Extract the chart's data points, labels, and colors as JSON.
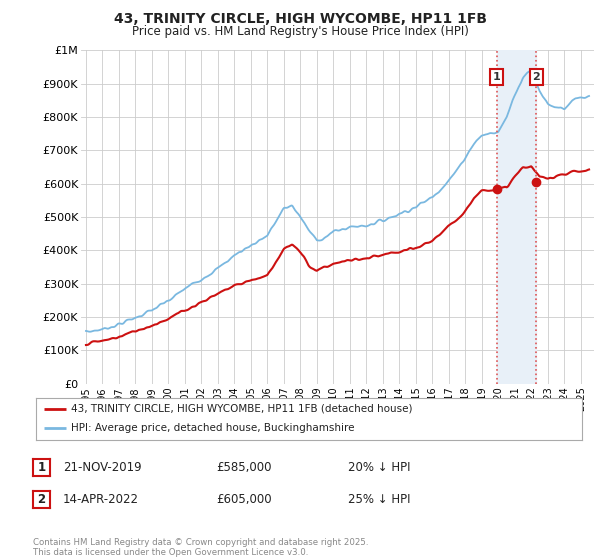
{
  "title": "43, TRINITY CIRCLE, HIGH WYCOMBE, HP11 1FB",
  "subtitle": "Price paid vs. HM Land Registry's House Price Index (HPI)",
  "ylabel_ticks": [
    "£0",
    "£100K",
    "£200K",
    "£300K",
    "£400K",
    "£500K",
    "£600K",
    "£700K",
    "£800K",
    "£900K",
    "£1M"
  ],
  "ylim": [
    0,
    1000000
  ],
  "ytick_values": [
    0,
    100000,
    200000,
    300000,
    400000,
    500000,
    600000,
    700000,
    800000,
    900000,
    1000000
  ],
  "hpi_color": "#7ab8e0",
  "price_color": "#cc1111",
  "vline_color": "#dd5555",
  "highlight_bg": "#e8f0f8",
  "legend_label_red": "43, TRINITY CIRCLE, HIGH WYCOMBE, HP11 1FB (detached house)",
  "legend_label_blue": "HPI: Average price, detached house, Buckinghamshire",
  "annotation1_label": "1",
  "annotation1_date": "21-NOV-2019",
  "annotation1_price": "£585,000",
  "annotation1_hpi": "20% ↓ HPI",
  "annotation2_label": "2",
  "annotation2_date": "14-APR-2022",
  "annotation2_price": "£605,000",
  "annotation2_hpi": "25% ↓ HPI",
  "footnote": "Contains HM Land Registry data © Crown copyright and database right 2025.\nThis data is licensed under the Open Government Licence v3.0.",
  "sale1_year": 2019.9,
  "sale2_year": 2022.3,
  "sale1_value": 585000,
  "sale2_value": 605000,
  "background_color": "#ffffff",
  "grid_color": "#cccccc",
  "hpi_keypoints_x": [
    1995,
    1996,
    1997,
    1998,
    1999,
    2000,
    2001,
    2002,
    2003,
    2004,
    2005,
    2006,
    2007,
    2007.5,
    2008,
    2008.5,
    2009,
    2009.5,
    2010,
    2011,
    2012,
    2013,
    2014,
    2015,
    2016,
    2017,
    2017.5,
    2018,
    2018.5,
    2019,
    2019.5,
    2020,
    2020.5,
    2021,
    2021.5,
    2022,
    2022.5,
    2023,
    2023.5,
    2024,
    2024.5,
    2025.5
  ],
  "hpi_keypoints_y": [
    155000,
    163000,
    178000,
    198000,
    220000,
    248000,
    285000,
    315000,
    345000,
    385000,
    415000,
    445000,
    525000,
    535000,
    500000,
    460000,
    430000,
    440000,
    455000,
    470000,
    475000,
    490000,
    510000,
    530000,
    560000,
    610000,
    640000,
    680000,
    720000,
    745000,
    750000,
    755000,
    800000,
    870000,
    920000,
    940000,
    880000,
    840000,
    830000,
    820000,
    850000,
    860000
  ],
  "price_keypoints_x": [
    1995,
    1996,
    1997,
    1998,
    1999,
    2000,
    2001,
    2002,
    2003,
    2004,
    2005,
    2006,
    2007,
    2007.5,
    2008,
    2008.5,
    2009,
    2009.5,
    2010,
    2011,
    2012,
    2013,
    2014,
    2015,
    2016,
    2017,
    2018,
    2018.5,
    2019,
    2019.5,
    2020,
    2020.5,
    2021,
    2021.5,
    2022,
    2022.5,
    2023,
    2023.5,
    2024,
    2024.5,
    2025.5
  ],
  "price_keypoints_y": [
    120000,
    128000,
    140000,
    158000,
    175000,
    195000,
    220000,
    245000,
    270000,
    295000,
    310000,
    325000,
    405000,
    415000,
    395000,
    355000,
    340000,
    350000,
    360000,
    370000,
    375000,
    385000,
    395000,
    405000,
    430000,
    470000,
    520000,
    555000,
    580000,
    585000,
    580000,
    590000,
    620000,
    650000,
    650000,
    620000,
    615000,
    625000,
    630000,
    635000,
    640000
  ]
}
